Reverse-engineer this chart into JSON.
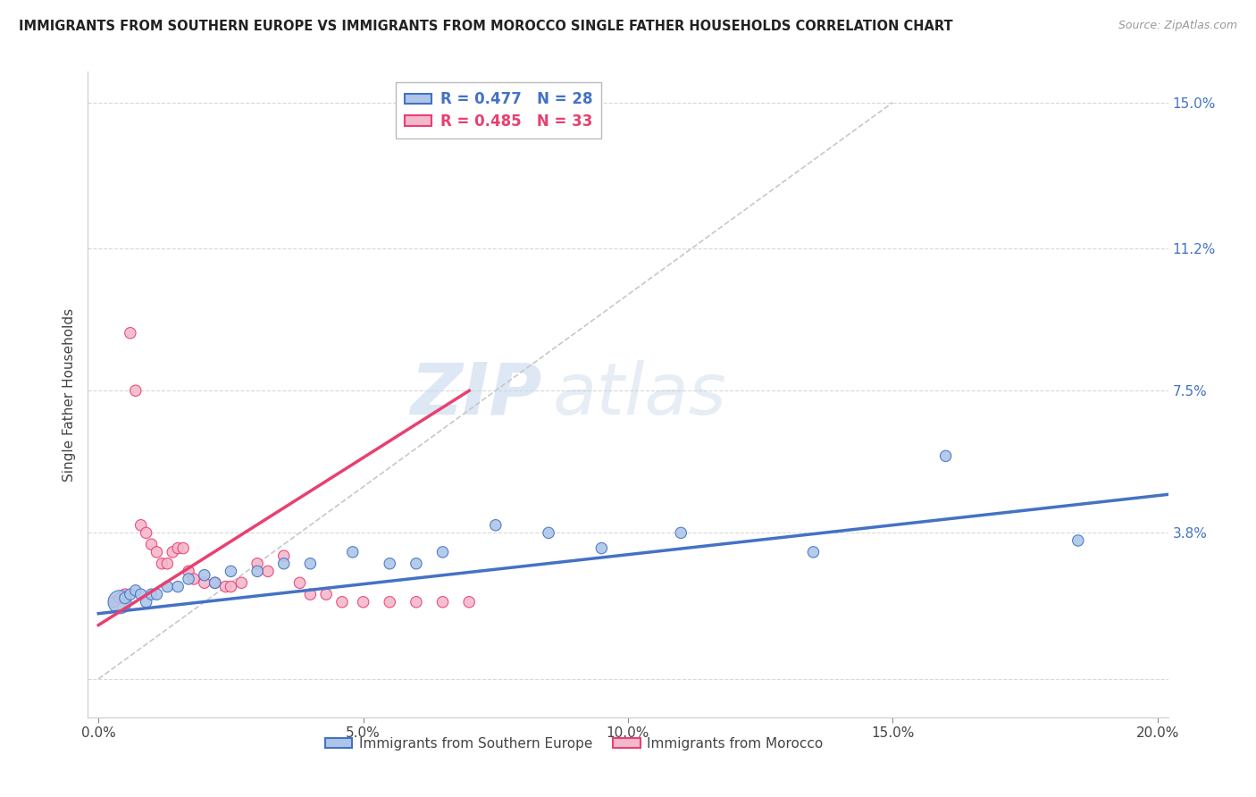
{
  "title": "IMMIGRANTS FROM SOUTHERN EUROPE VS IMMIGRANTS FROM MOROCCO SINGLE FATHER HOUSEHOLDS CORRELATION CHART",
  "source": "Source: ZipAtlas.com",
  "ylabel": "Single Father Households",
  "xlim": [
    -0.002,
    0.202
  ],
  "ylim": [
    -0.01,
    0.158
  ],
  "xticks": [
    0.0,
    0.05,
    0.1,
    0.15,
    0.2
  ],
  "yticks": [
    0.0,
    0.038,
    0.075,
    0.112,
    0.15
  ],
  "ytick_labels": [
    "",
    "3.8%",
    "7.5%",
    "11.2%",
    "15.0%"
  ],
  "xtick_labels": [
    "0.0%",
    "5.0%",
    "10.0%",
    "15.0%",
    "20.0%"
  ],
  "blue_R": 0.477,
  "blue_N": 28,
  "pink_R": 0.485,
  "pink_N": 33,
  "blue_label": "Immigrants from Southern Europe",
  "pink_label": "Immigrants from Morocco",
  "blue_color": "#adc6e8",
  "pink_color": "#f4b8cc",
  "blue_line_color": "#4472C4",
  "pink_line_color": "#E84070",
  "ref_line_color": "#c8c8c8",
  "grid_color": "#d8d8d8",
  "watermark_color": "#dce8f5",
  "blue_scatter_x": [
    0.004,
    0.005,
    0.006,
    0.007,
    0.008,
    0.009,
    0.01,
    0.011,
    0.013,
    0.015,
    0.017,
    0.02,
    0.022,
    0.025,
    0.03,
    0.035,
    0.04,
    0.048,
    0.055,
    0.06,
    0.065,
    0.075,
    0.085,
    0.095,
    0.11,
    0.135,
    0.16,
    0.185
  ],
  "blue_scatter_y": [
    0.02,
    0.021,
    0.022,
    0.023,
    0.022,
    0.02,
    0.022,
    0.022,
    0.024,
    0.024,
    0.026,
    0.027,
    0.025,
    0.028,
    0.028,
    0.03,
    0.03,
    0.033,
    0.03,
    0.03,
    0.033,
    0.04,
    0.038,
    0.034,
    0.038,
    0.033,
    0.058,
    0.036
  ],
  "blue_scatter_size": [
    350,
    80,
    80,
    80,
    80,
    80,
    80,
    80,
    80,
    80,
    80,
    80,
    80,
    80,
    80,
    80,
    80,
    80,
    80,
    80,
    80,
    80,
    80,
    80,
    80,
    80,
    80,
    80
  ],
  "pink_scatter_x": [
    0.003,
    0.004,
    0.005,
    0.006,
    0.007,
    0.008,
    0.009,
    0.01,
    0.011,
    0.012,
    0.013,
    0.014,
    0.015,
    0.016,
    0.017,
    0.018,
    0.02,
    0.022,
    0.024,
    0.025,
    0.027,
    0.03,
    0.032,
    0.035,
    0.038,
    0.04,
    0.043,
    0.046,
    0.05,
    0.055,
    0.06,
    0.065,
    0.07
  ],
  "pink_scatter_y": [
    0.02,
    0.021,
    0.022,
    0.09,
    0.075,
    0.04,
    0.038,
    0.035,
    0.033,
    0.03,
    0.03,
    0.033,
    0.034,
    0.034,
    0.028,
    0.026,
    0.025,
    0.025,
    0.024,
    0.024,
    0.025,
    0.03,
    0.028,
    0.032,
    0.025,
    0.022,
    0.022,
    0.02,
    0.02,
    0.02,
    0.02,
    0.02,
    0.02
  ],
  "pink_scatter_size": [
    80,
    80,
    80,
    80,
    80,
    80,
    80,
    80,
    80,
    80,
    80,
    80,
    80,
    80,
    80,
    80,
    80,
    80,
    80,
    80,
    80,
    80,
    80,
    80,
    80,
    80,
    80,
    80,
    80,
    80,
    80,
    80,
    80
  ],
  "blue_trendline_x": [
    0.0,
    0.202
  ],
  "blue_trendline_y": [
    0.017,
    0.048
  ],
  "pink_trendline_x": [
    0.0,
    0.07
  ],
  "pink_trendline_y": [
    0.014,
    0.075
  ]
}
